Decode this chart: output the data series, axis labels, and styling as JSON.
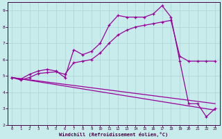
{
  "xlabel": "Windchill (Refroidissement éolien,°C)",
  "background_color": "#c8ecec",
  "grid_color": "#b0d8d8",
  "line_color": "#990099",
  "xlim": [
    -0.5,
    23.5
  ],
  "ylim": [
    2,
    9.5
  ],
  "yticks": [
    2,
    3,
    4,
    5,
    6,
    7,
    8,
    9
  ],
  "xticks": [
    0,
    1,
    2,
    3,
    4,
    5,
    6,
    7,
    8,
    9,
    10,
    11,
    12,
    13,
    14,
    15,
    16,
    17,
    18,
    19,
    20,
    21,
    22,
    23
  ],
  "series1_x": [
    0,
    1,
    2,
    3,
    4,
    5,
    6,
    7,
    8,
    9,
    10,
    11,
    12,
    13,
    14,
    15,
    16,
    17,
    18,
    19,
    20,
    21,
    22,
    23
  ],
  "series1_y": [
    4.9,
    4.8,
    5.1,
    5.3,
    5.4,
    5.3,
    4.9,
    6.6,
    6.3,
    6.5,
    7.0,
    8.1,
    8.7,
    8.6,
    8.6,
    8.6,
    8.8,
    9.3,
    8.6,
    5.9,
    3.3,
    3.3,
    2.5,
    3.0
  ],
  "series2_x": [
    0,
    1,
    2,
    3,
    4,
    5,
    6,
    7,
    8,
    9,
    10,
    11,
    12,
    13,
    14,
    15,
    16,
    17,
    18,
    19,
    20,
    21,
    22,
    23
  ],
  "series2_y": [
    4.9,
    4.75,
    4.9,
    5.15,
    5.2,
    5.25,
    5.1,
    5.8,
    5.9,
    6.0,
    6.4,
    7.0,
    7.5,
    7.8,
    8.0,
    8.1,
    8.2,
    8.3,
    8.4,
    6.2,
    5.9,
    5.9,
    5.9,
    5.9
  ],
  "series3_x": [
    0,
    23
  ],
  "series3_y": [
    4.9,
    3.3
  ],
  "series4_x": [
    0,
    23
  ],
  "series4_y": [
    4.9,
    2.9
  ]
}
